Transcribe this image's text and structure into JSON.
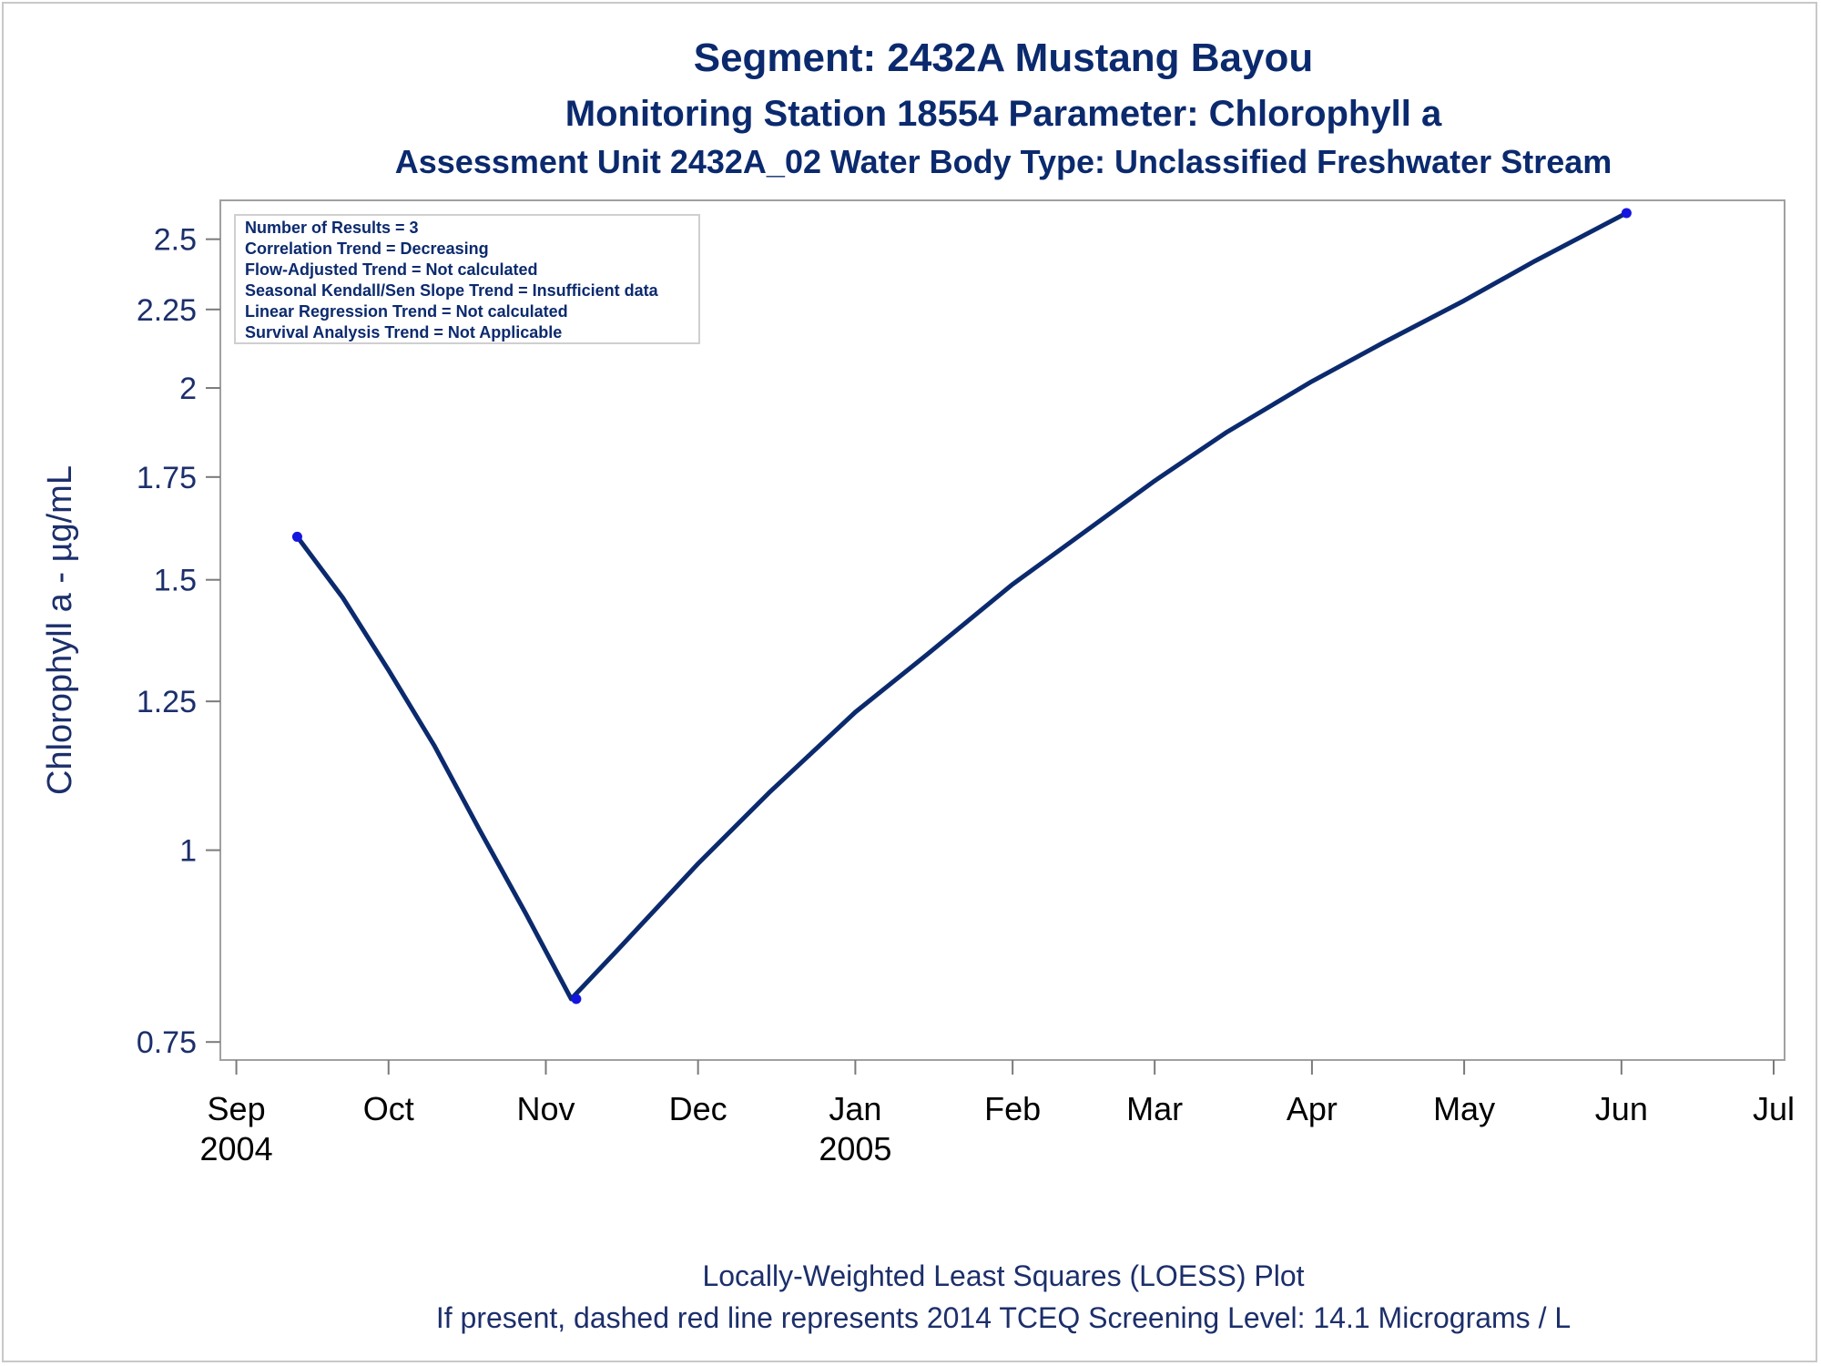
{
  "titles": {
    "line1": "Segment: 2432A  Mustang Bayou",
    "line2": "Monitoring Station 18554 Parameter: Chlorophyll a",
    "line3": "Assessment Unit 2432A_02   Water Body Type: Unclassified Freshwater Stream"
  },
  "info_box": [
    "Number of Results = 3",
    "Correlation Trend = Decreasing",
    "Flow-Adjusted Trend = Not calculated",
    "Seasonal Kendall/Sen Slope Trend = Insufficient data",
    "Linear Regression Trend = Not calculated",
    "Survival Analysis Trend = Not Applicable"
  ],
  "footnotes": {
    "line1": "Locally-Weighted Least Squares (LOESS) Plot",
    "line2": "If present, dashed red line represents 2014 TCEQ Screening Level: 14.1 Micrograms / L"
  },
  "colors": {
    "line": "#0b2a6e",
    "points": "#1515e0",
    "text": "#1c2f6b"
  },
  "chart_data": {
    "type": "line",
    "ylabel": "Chlorophyll a -  µg/mL",
    "yscale": "log",
    "ylim": [
      0.73,
      2.65
    ],
    "yticks": [
      0.75,
      1,
      1.25,
      1.5,
      1.75,
      2,
      2.25,
      2.5
    ],
    "xlim": [
      "2004-08-31",
      "2005-07-01"
    ],
    "xticks": [
      {
        "date": "2004-09-01",
        "label": "Sep",
        "year": "2004"
      },
      {
        "date": "2004-10-01",
        "label": "Oct",
        "year": ""
      },
      {
        "date": "2004-11-01",
        "label": "Nov",
        "year": ""
      },
      {
        "date": "2004-12-01",
        "label": "Dec",
        "year": ""
      },
      {
        "date": "2005-01-01",
        "label": "Jan",
        "year": "2005"
      },
      {
        "date": "2005-02-01",
        "label": "Feb",
        "year": ""
      },
      {
        "date": "2005-03-01",
        "label": "Mar",
        "year": ""
      },
      {
        "date": "2005-04-01",
        "label": "Apr",
        "year": ""
      },
      {
        "date": "2005-05-01",
        "label": "May",
        "year": ""
      },
      {
        "date": "2005-06-01",
        "label": "Jun",
        "year": ""
      },
      {
        "date": "2005-07-01",
        "label": "Jul",
        "year": ""
      }
    ],
    "points": [
      {
        "date": "2004-09-13",
        "value": 1.6
      },
      {
        "date": "2004-11-07",
        "value": 0.8
      },
      {
        "date": "2005-06-02",
        "value": 2.6
      }
    ],
    "loess": [
      {
        "date": "2004-09-13",
        "value": 1.6
      },
      {
        "date": "2004-09-22",
        "value": 1.46
      },
      {
        "date": "2004-10-01",
        "value": 1.31
      },
      {
        "date": "2004-10-10",
        "value": 1.17
      },
      {
        "date": "2004-10-19",
        "value": 1.03
      },
      {
        "date": "2004-10-28",
        "value": 0.91
      },
      {
        "date": "2004-11-06",
        "value": 0.8
      },
      {
        "date": "2004-11-15",
        "value": 0.86
      },
      {
        "date": "2004-12-01",
        "value": 0.98
      },
      {
        "date": "2004-12-15",
        "value": 1.09
      },
      {
        "date": "2005-01-01",
        "value": 1.23
      },
      {
        "date": "2005-01-15",
        "value": 1.34
      },
      {
        "date": "2005-02-01",
        "value": 1.49
      },
      {
        "date": "2005-02-15",
        "value": 1.61
      },
      {
        "date": "2005-03-01",
        "value": 1.74
      },
      {
        "date": "2005-03-15",
        "value": 1.87
      },
      {
        "date": "2005-04-01",
        "value": 2.02
      },
      {
        "date": "2005-04-15",
        "value": 2.14
      },
      {
        "date": "2005-05-01",
        "value": 2.28
      },
      {
        "date": "2005-05-15",
        "value": 2.42
      },
      {
        "date": "2005-06-02",
        "value": 2.6
      }
    ]
  }
}
